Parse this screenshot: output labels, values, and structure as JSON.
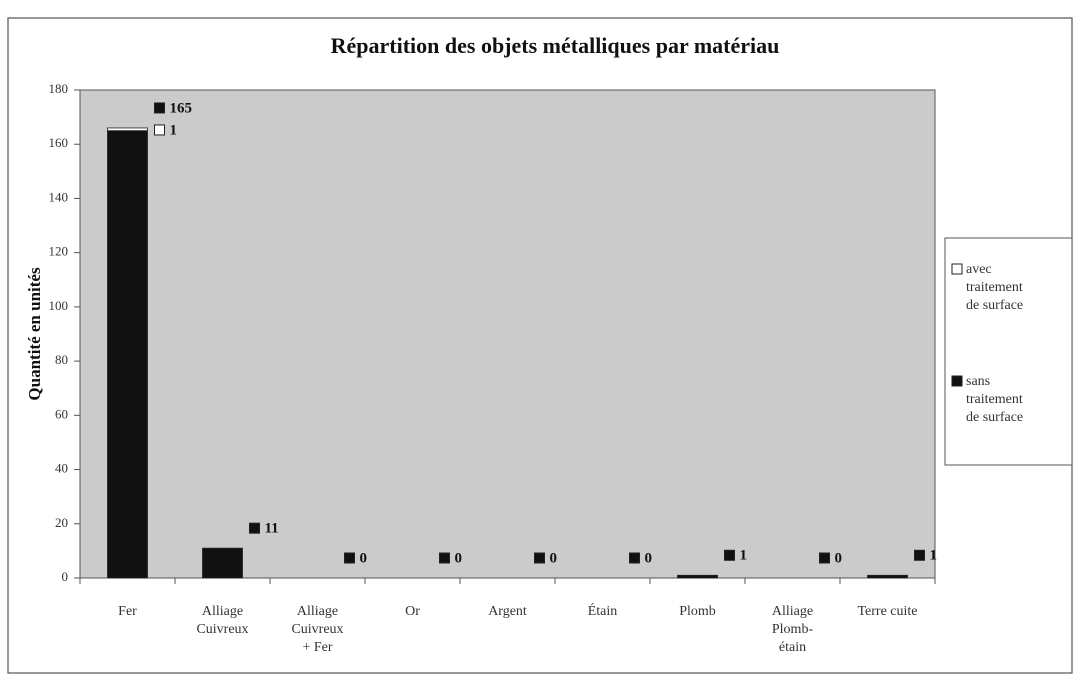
{
  "chart_data": {
    "type": "stacked_bar",
    "title": "Répartition des objets métalliques par matériau",
    "y_label": "Quantité en unités",
    "categories": [
      "Fer",
      "Alliage\nCuivreux",
      "Alliage\nCuivreux\n+ Fer",
      "Or",
      "Argent",
      "Étain",
      "Plomb",
      "Alliage\nPlomb-\nétain",
      "Terre cuite"
    ],
    "series": [
      {
        "name": "sans\ntraitement\nde surface",
        "color": "#111111",
        "values": [
          165,
          11,
          0,
          0,
          0,
          0,
          1,
          0,
          1
        ]
      },
      {
        "name": "avec\ntraitement\nde surface",
        "color": "#ffffff",
        "values": [
          1,
          0,
          0,
          0,
          0,
          0,
          0,
          0,
          0
        ]
      }
    ],
    "ylim": [
      0,
      180
    ],
    "yticks": [
      0,
      20,
      40,
      60,
      80,
      100,
      120,
      140,
      160,
      180
    ],
    "legend": "right"
  }
}
